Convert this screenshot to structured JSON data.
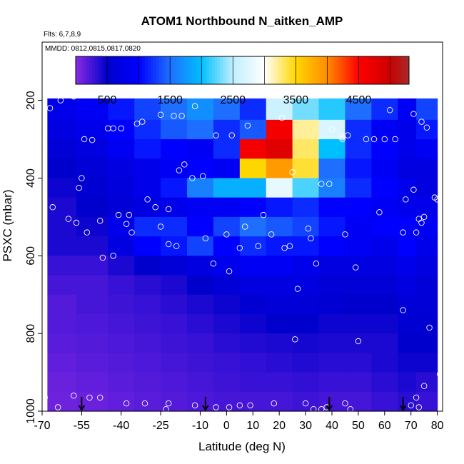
{
  "chart_data": {
    "type": "heatmap",
    "title": "ATOM1 Northbound N_aitken_AMP",
    "annotations": [
      "Flts: 6,7,8,9",
      "MMDD: 0812,0815,0817,0820"
    ],
    "xlabel": "Latitude (deg N)",
    "ylabel": "PSXC (mbar)",
    "xlim": [
      -70,
      82
    ],
    "ylim": [
      1000,
      50
    ],
    "y_reversed": true,
    "x_ticks": [
      -70,
      -55,
      -40,
      -25,
      -10,
      0,
      10,
      20,
      30,
      40,
      50,
      60,
      70,
      80
    ],
    "y_ticks": [
      200,
      400,
      600,
      800,
      1000
    ],
    "colorbar": {
      "min": 0,
      "max": 5300,
      "ticks": [
        500,
        1500,
        2500,
        3500,
        4500
      ],
      "stops": [
        {
          "v": 0,
          "color": "#8a2be2"
        },
        {
          "v": 500,
          "color": "#0000cd"
        },
        {
          "v": 1000,
          "color": "#0000ff"
        },
        {
          "v": 1500,
          "color": "#1e6fff"
        },
        {
          "v": 2000,
          "color": "#00bfff"
        },
        {
          "v": 2500,
          "color": "#bfefff"
        },
        {
          "v": 3000,
          "color": "#ffffff"
        },
        {
          "v": 3500,
          "color": "#ffd700"
        },
        {
          "v": 4000,
          "color": "#ff8c00"
        },
        {
          "v": 4500,
          "color": "#ff0000"
        },
        {
          "v": 5000,
          "color": "#cd0000"
        },
        {
          "v": 5300,
          "color": "#a52a2a"
        }
      ]
    },
    "grid": {
      "lat_edges": [
        -68,
        -57,
        -45,
        -35,
        -25,
        -15,
        -5,
        5,
        15,
        25,
        35,
        45,
        55,
        65,
        72,
        80
      ],
      "p_levels": [
        195,
        250,
        300,
        350,
        400,
        450,
        500,
        550,
        600,
        650,
        700,
        750,
        800,
        850,
        900,
        950,
        1000
      ],
      "values": [
        [
          800,
          900,
          1100,
          1300,
          1500,
          1700,
          1500,
          1200,
          2600,
          2300,
          2100,
          1500,
          1200,
          900,
          1300
        ],
        [
          700,
          800,
          1000,
          1200,
          1400,
          1500,
          1200,
          1400,
          4600,
          3200,
          2700,
          1200,
          900,
          800,
          1100
        ],
        [
          600,
          700,
          900,
          1100,
          1000,
          900,
          1200,
          4600,
          4800,
          3300,
          2000,
          1200,
          1000,
          800,
          900
        ],
        [
          500,
          600,
          700,
          800,
          900,
          1000,
          900,
          3500,
          3900,
          3400,
          1500,
          1100,
          900,
          700,
          700
        ],
        [
          450,
          550,
          650,
          800,
          1100,
          1600,
          1900,
          1900,
          2800,
          2200,
          1600,
          1200,
          1000,
          800,
          700
        ],
        [
          400,
          500,
          600,
          700,
          800,
          900,
          900,
          1000,
          1100,
          1200,
          1000,
          1000,
          900,
          800,
          800
        ],
        [
          400,
          450,
          800,
          1200,
          1200,
          1000,
          1300,
          1500,
          1400,
          1300,
          1100,
          900,
          1000,
          1000,
          900
        ],
        [
          400,
          400,
          700,
          1000,
          1100,
          1300,
          1000,
          1200,
          1100,
          1100,
          1000,
          900,
          800,
          1000,
          800
        ],
        [
          300,
          300,
          400,
          500,
          600,
          700,
          800,
          900,
          900,
          800,
          700,
          700,
          700,
          800,
          700
        ],
        [
          250,
          250,
          300,
          350,
          400,
          500,
          600,
          700,
          700,
          700,
          600,
          600,
          600,
          700,
          600
        ],
        [
          200,
          250,
          280,
          300,
          350,
          400,
          450,
          550,
          600,
          600,
          550,
          500,
          500,
          600,
          600
        ],
        [
          200,
          220,
          250,
          280,
          300,
          350,
          400,
          450,
          500,
          500,
          450,
          450,
          450,
          550,
          550
        ],
        [
          180,
          200,
          220,
          250,
          280,
          300,
          350,
          380,
          400,
          420,
          400,
          400,
          400,
          500,
          500
        ],
        [
          150,
          180,
          200,
          220,
          250,
          280,
          300,
          320,
          350,
          380,
          350,
          350,
          400,
          450,
          450
        ],
        [
          120,
          150,
          180,
          200,
          220,
          250,
          280,
          300,
          300,
          320,
          300,
          300,
          350,
          400,
          350
        ],
        [
          100,
          120,
          150,
          180,
          200,
          220,
          250,
          250,
          250,
          280,
          250,
          250,
          300,
          350,
          300
        ]
      ]
    },
    "observation_points": [
      [
        -67,
        220
      ],
      [
        -63,
        200
      ],
      [
        -58,
        190
      ],
      [
        -66,
        475
      ],
      [
        -56,
        425
      ],
      [
        -60,
        505
      ],
      [
        -57,
        515
      ],
      [
        -54,
        300
      ],
      [
        -51,
        302
      ],
      [
        -53,
        540
      ],
      [
        -55,
        400
      ],
      [
        -48,
        510
      ],
      [
        -45,
        272
      ],
      [
        -43,
        272
      ],
      [
        -40,
        272
      ],
      [
        -37,
        495
      ],
      [
        -38,
        518
      ],
      [
        -32,
        255
      ],
      [
        -30,
        455
      ],
      [
        -27,
        475
      ],
      [
        -22,
        480
      ],
      [
        -25,
        237
      ],
      [
        -20,
        240
      ],
      [
        -17,
        240
      ],
      [
        -12,
        215
      ],
      [
        -18,
        380
      ],
      [
        -16,
        365
      ],
      [
        -13,
        400
      ],
      [
        -9,
        395
      ],
      [
        -22,
        570
      ],
      [
        -25,
        525
      ],
      [
        -19,
        575
      ],
      [
        -8,
        555
      ],
      [
        -4,
        290
      ],
      [
        2,
        290
      ],
      [
        8,
        265
      ],
      [
        0,
        545
      ],
      [
        5,
        580
      ],
      [
        7,
        525
      ],
      [
        12,
        575
      ],
      [
        14,
        495
      ],
      [
        17,
        545
      ],
      [
        21,
        245
      ],
      [
        22,
        580
      ],
      [
        24,
        575
      ],
      [
        25,
        385
      ],
      [
        27,
        685
      ],
      [
        26,
        815
      ],
      [
        31,
        530
      ],
      [
        32,
        555
      ],
      [
        34,
        620
      ],
      [
        36,
        415
      ],
      [
        39,
        415
      ],
      [
        40,
        275
      ],
      [
        44,
        300
      ],
      [
        44,
        295
      ],
      [
        46,
        290
      ],
      [
        49,
        630
      ],
      [
        50,
        820
      ],
      [
        53,
        300
      ],
      [
        56,
        300
      ],
      [
        60,
        300
      ],
      [
        64,
        300
      ],
      [
        62,
        225
      ],
      [
        67,
        740
      ],
      [
        68,
        455
      ],
      [
        71,
        430
      ],
      [
        72,
        540
      ],
      [
        73,
        505
      ],
      [
        74,
        515
      ],
      [
        75,
        500
      ],
      [
        77,
        785
      ],
      [
        79,
        450
      ],
      [
        80,
        455
      ],
      [
        81,
        905
      ],
      [
        75,
        935
      ],
      [
        73,
        990
      ],
      [
        67,
        540
      ],
      [
        -69,
        965
      ],
      [
        -64,
        990
      ],
      [
        -58,
        960
      ],
      [
        -52,
        965
      ],
      [
        -48,
        965
      ],
      [
        -38,
        980
      ],
      [
        -31,
        980
      ],
      [
        -22,
        980
      ],
      [
        -23,
        995
      ],
      [
        -12,
        985
      ],
      [
        -4,
        990
      ],
      [
        1,
        990
      ],
      [
        5,
        985
      ],
      [
        9,
        985
      ],
      [
        18,
        980
      ],
      [
        30,
        980
      ],
      [
        33,
        995
      ],
      [
        36,
        995
      ],
      [
        38,
        990
      ],
      [
        45,
        980
      ],
      [
        47,
        995
      ],
      [
        70,
        985
      ],
      [
        72,
        965
      ],
      [
        74,
        255
      ],
      [
        71,
        235
      ],
      [
        76,
        270
      ],
      [
        58,
        488
      ],
      [
        45,
        545
      ],
      [
        -34,
        260
      ],
      [
        -41,
        495
      ],
      [
        -36,
        540
      ],
      [
        -47,
        605
      ],
      [
        -43,
        600
      ],
      [
        -5,
        620
      ],
      [
        1,
        640
      ]
    ],
    "arrows_at_latitude": [
      -55,
      -8,
      39,
      67
    ]
  }
}
